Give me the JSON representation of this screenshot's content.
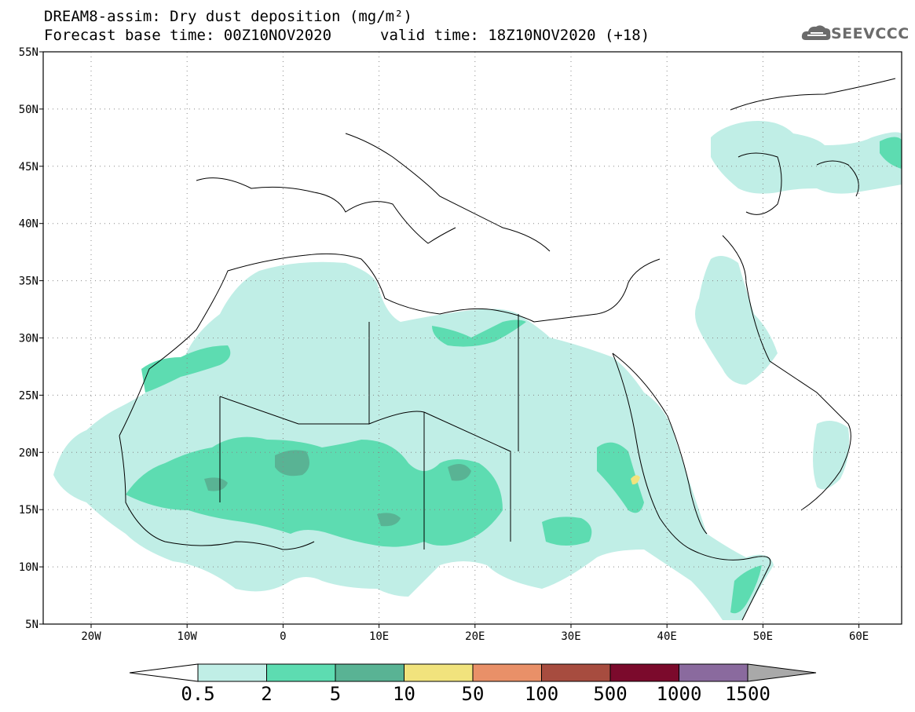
{
  "header": {
    "title_line1": "DREAM8-assim: Dry dust deposition (mg/m²)",
    "title_line2": "Forecast base time: 00Z10NOV2020",
    "valid_time": "valid time: 18Z10NOV2020 (+18)",
    "logo_text": "SEEVCCC",
    "logo_icon": "cloud-logo-icon"
  },
  "map": {
    "lat_labels": [
      "55N",
      "50N",
      "45N",
      "40N",
      "35N",
      "30N",
      "25N",
      "20N",
      "15N",
      "10N",
      "5N"
    ],
    "lon_labels": [
      "20W",
      "10W",
      "0",
      "10E",
      "20E",
      "30E",
      "40E",
      "50E",
      "60E"
    ],
    "colors": {
      "light": "#c0eee6",
      "mid": "#5ddcb1",
      "dark": "#59b394",
      "yellow": "#f1e37d"
    }
  },
  "colorbar": {
    "labels": [
      "0.5",
      "2",
      "5",
      "10",
      "50",
      "100",
      "500",
      "1000",
      "1500"
    ],
    "colors": [
      "#c0eee6",
      "#5ddcb1",
      "#59b394",
      "#f1e37d",
      "#e99068",
      "#a74c3f",
      "#7b0a2c",
      "#8a6a9e"
    ],
    "low_color": "#ffffff",
    "high_color": "#a9a9a9"
  }
}
